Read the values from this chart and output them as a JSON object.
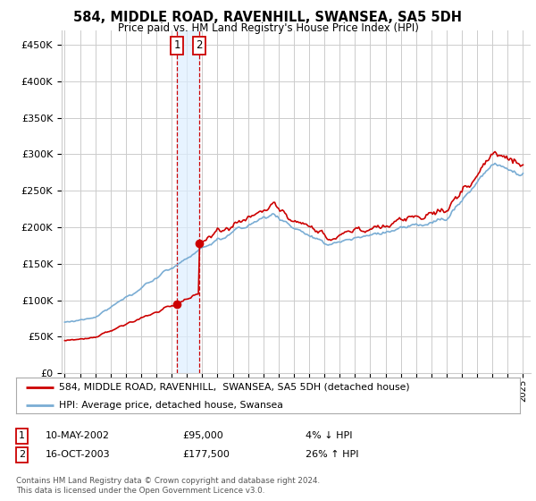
{
  "title": "584, MIDDLE ROAD, RAVENHILL, SWANSEA, SA5 5DH",
  "subtitle": "Price paid vs. HM Land Registry's House Price Index (HPI)",
  "ylabel_ticks": [
    "£0",
    "£50K",
    "£100K",
    "£150K",
    "£200K",
    "£250K",
    "£300K",
    "£350K",
    "£400K",
    "£450K"
  ],
  "ylabel_values": [
    0,
    50000,
    100000,
    150000,
    200000,
    250000,
    300000,
    350000,
    400000,
    450000
  ],
  "ylim": [
    0,
    470000
  ],
  "xlim_start": 1994.8,
  "xlim_end": 2025.5,
  "hpi_color": "#7aadd4",
  "price_color": "#cc0000",
  "sale1_date": 2002.36,
  "sale1_price": 95000,
  "sale2_date": 2003.79,
  "sale2_price": 177500,
  "legend_line1": "584, MIDDLE ROAD, RAVENHILL,  SWANSEA, SA5 5DH (detached house)",
  "legend_line2": "HPI: Average price, detached house, Swansea",
  "table_row1_num": "1",
  "table_row1_date": "10-MAY-2002",
  "table_row1_price": "£95,000",
  "table_row1_hpi": "4% ↓ HPI",
  "table_row2_num": "2",
  "table_row2_date": "16-OCT-2003",
  "table_row2_price": "£177,500",
  "table_row2_hpi": "26% ↑ HPI",
  "footnote": "Contains HM Land Registry data © Crown copyright and database right 2024.\nThis data is licensed under the Open Government Licence v3.0.",
  "background_color": "#ffffff",
  "grid_color": "#cccccc",
  "shaded_region_color": "#ddeeff"
}
